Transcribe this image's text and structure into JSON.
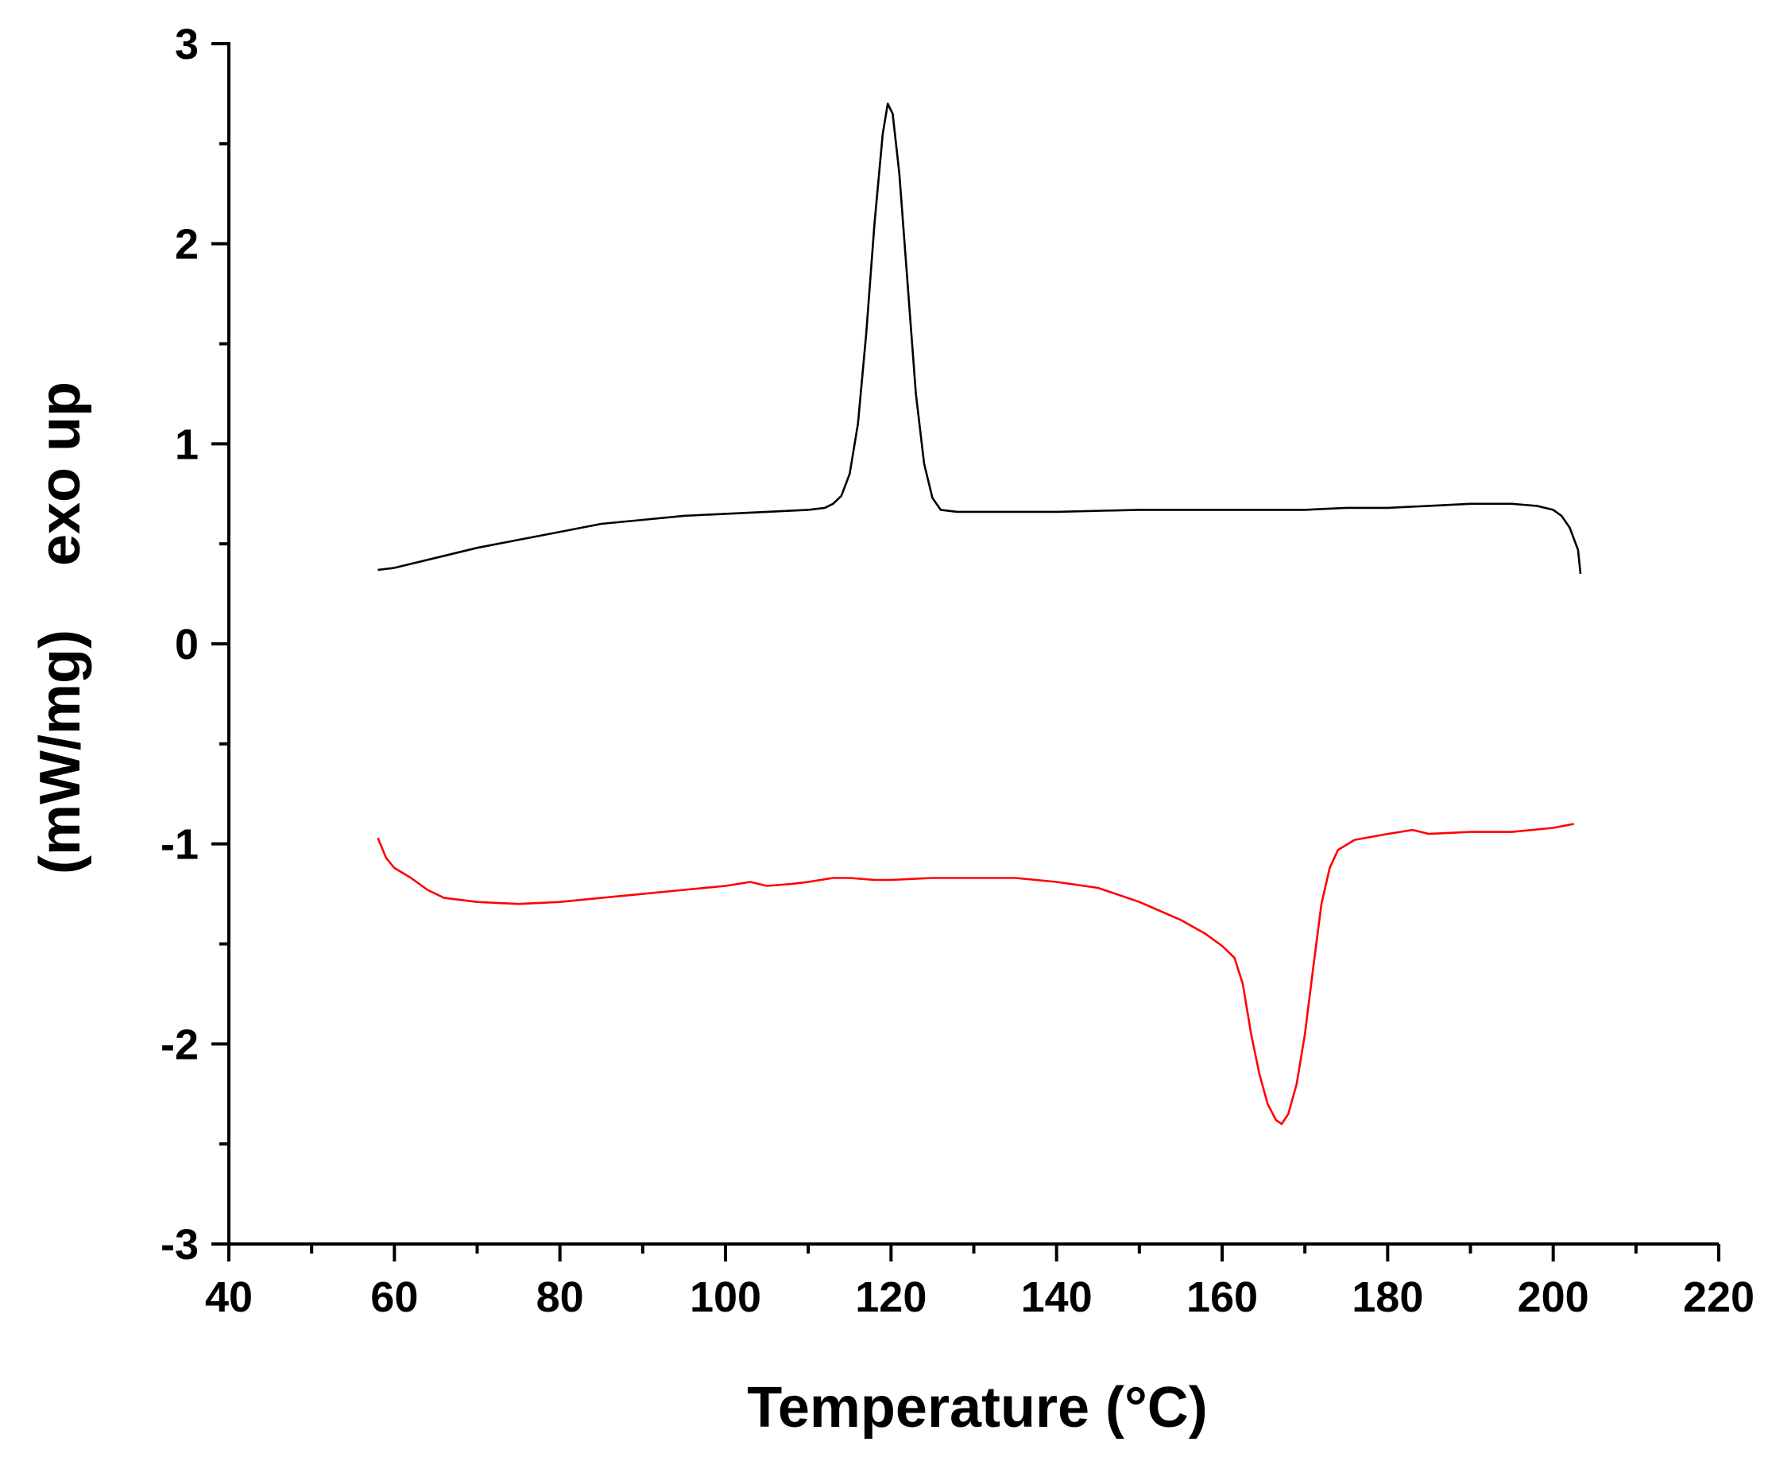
{
  "chart_data": {
    "type": "line",
    "title": "",
    "xlabel": "Temperature (°C)",
    "ylabel": "(mW/mg)    exo up",
    "xlim": [
      40,
      220
    ],
    "ylim": [
      -3,
      3
    ],
    "x_ticks": [
      40,
      60,
      80,
      100,
      120,
      140,
      160,
      180,
      200,
      220
    ],
    "y_ticks": [
      3,
      2,
      1,
      0,
      -1,
      -2,
      -3
    ],
    "grid": false,
    "legend": "none",
    "series": [
      {
        "color": "#000000",
        "points": [
          [
            58,
            0.37
          ],
          [
            60,
            0.38
          ],
          [
            65,
            0.43
          ],
          [
            70,
            0.48
          ],
          [
            75,
            0.52
          ],
          [
            80,
            0.56
          ],
          [
            85,
            0.6
          ],
          [
            90,
            0.62
          ],
          [
            95,
            0.64
          ],
          [
            100,
            0.65
          ],
          [
            105,
            0.66
          ],
          [
            110,
            0.67
          ],
          [
            112,
            0.68
          ],
          [
            113,
            0.7
          ],
          [
            114,
            0.74
          ],
          [
            115,
            0.85
          ],
          [
            116,
            1.1
          ],
          [
            117,
            1.55
          ],
          [
            118,
            2.1
          ],
          [
            119,
            2.55
          ],
          [
            119.6,
            2.7
          ],
          [
            120.2,
            2.65
          ],
          [
            121,
            2.35
          ],
          [
            122,
            1.8
          ],
          [
            123,
            1.25
          ],
          [
            124,
            0.9
          ],
          [
            125,
            0.73
          ],
          [
            126,
            0.67
          ],
          [
            128,
            0.66
          ],
          [
            130,
            0.66
          ],
          [
            140,
            0.66
          ],
          [
            150,
            0.67
          ],
          [
            160,
            0.67
          ],
          [
            170,
            0.67
          ],
          [
            175,
            0.68
          ],
          [
            180,
            0.68
          ],
          [
            185,
            0.69
          ],
          [
            190,
            0.7
          ],
          [
            195,
            0.7
          ],
          [
            198,
            0.69
          ],
          [
            200,
            0.67
          ],
          [
            201,
            0.64
          ],
          [
            202,
            0.58
          ],
          [
            203,
            0.47
          ],
          [
            203.3,
            0.35
          ]
        ]
      },
      {
        "color": "#ff0000",
        "points": [
          [
            58,
            -0.97
          ],
          [
            59,
            -1.07
          ],
          [
            60,
            -1.12
          ],
          [
            62,
            -1.17
          ],
          [
            64,
            -1.23
          ],
          [
            66,
            -1.27
          ],
          [
            70,
            -1.29
          ],
          [
            75,
            -1.3
          ],
          [
            80,
            -1.29
          ],
          [
            85,
            -1.27
          ],
          [
            90,
            -1.25
          ],
          [
            95,
            -1.23
          ],
          [
            100,
            -1.21
          ],
          [
            103,
            -1.19
          ],
          [
            105,
            -1.21
          ],
          [
            108,
            -1.2
          ],
          [
            110,
            -1.19
          ],
          [
            113,
            -1.17
          ],
          [
            115,
            -1.17
          ],
          [
            118,
            -1.18
          ],
          [
            120,
            -1.18
          ],
          [
            125,
            -1.17
          ],
          [
            130,
            -1.17
          ],
          [
            135,
            -1.17
          ],
          [
            140,
            -1.19
          ],
          [
            145,
            -1.22
          ],
          [
            150,
            -1.29
          ],
          [
            155,
            -1.38
          ],
          [
            158,
            -1.45
          ],
          [
            160,
            -1.51
          ],
          [
            161.5,
            -1.57
          ],
          [
            162.5,
            -1.7
          ],
          [
            163.5,
            -1.95
          ],
          [
            164.5,
            -2.15
          ],
          [
            165.5,
            -2.3
          ],
          [
            166.5,
            -2.38
          ],
          [
            167.2,
            -2.4
          ],
          [
            168,
            -2.35
          ],
          [
            169,
            -2.2
          ],
          [
            170,
            -1.95
          ],
          [
            171,
            -1.62
          ],
          [
            172,
            -1.3
          ],
          [
            173,
            -1.12
          ],
          [
            174,
            -1.03
          ],
          [
            176,
            -0.98
          ],
          [
            180,
            -0.95
          ],
          [
            183,
            -0.93
          ],
          [
            185,
            -0.95
          ],
          [
            190,
            -0.94
          ],
          [
            195,
            -0.94
          ],
          [
            200,
            -0.92
          ],
          [
            202.5,
            -0.9
          ]
        ]
      }
    ]
  }
}
